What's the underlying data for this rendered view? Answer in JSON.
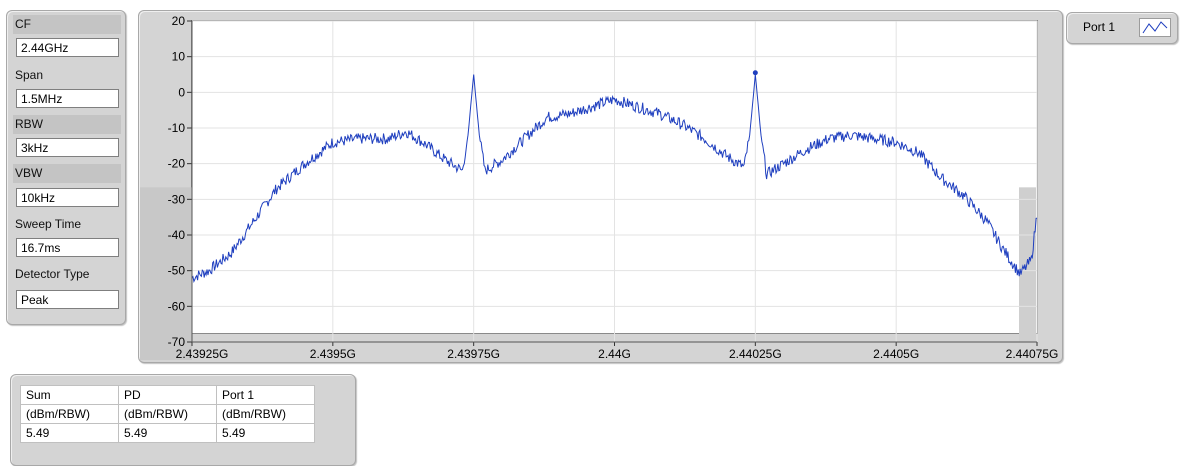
{
  "settings": [
    {
      "label": "CF",
      "value": "2.44GHz"
    },
    {
      "label": "Span",
      "value": "1.5MHz"
    },
    {
      "label": "RBW",
      "value": "3kHz"
    },
    {
      "label": "VBW",
      "value": "10kHz"
    },
    {
      "label": "Sweep Time",
      "value": "16.7ms"
    },
    {
      "label": "Detector Type",
      "value": "Peak"
    }
  ],
  "legend": {
    "name": "Port 1"
  },
  "table": {
    "headers": [
      "Sum",
      "PD",
      "Port 1"
    ],
    "units": [
      "(dBm/RBW)",
      "(dBm/RBW)",
      "(dBm/RBW)"
    ],
    "values": [
      "5.49",
      "5.49",
      "5.49"
    ]
  },
  "colors": {
    "trace": "#1f3fbf",
    "panel": "#d4d4d4"
  },
  "chart_data": {
    "type": "line",
    "x_tick_labels": [
      "2.43925G",
      "2.4395G",
      "2.43975G",
      "2.44G",
      "2.44025G",
      "2.4405G",
      "2.44075G"
    ],
    "y_tick_labels": [
      "20",
      "10",
      "0",
      "-10",
      "-20",
      "-30",
      "-40",
      "-50",
      "-60",
      "-70"
    ],
    "xlim": [
      2.43925,
      2.44075
    ],
    "ylim": [
      -70,
      20
    ],
    "grid": true,
    "series": [
      {
        "name": "Port 1",
        "x": [
          2.43925,
          2.43928,
          2.43932,
          2.43936,
          2.4394,
          2.43945,
          2.4395,
          2.43955,
          2.4396,
          2.43963,
          2.43966,
          2.4397,
          2.43973,
          2.43974,
          2.43975,
          2.43976,
          2.43977,
          2.4398,
          2.43984,
          2.43988,
          2.43992,
          2.43996,
          2.44,
          2.44004,
          2.44008,
          2.44012,
          2.44016,
          2.4402,
          2.44023,
          2.44024,
          2.44025,
          2.44026,
          2.44027,
          2.4403,
          2.44034,
          2.44038,
          2.44042,
          2.44046,
          2.4405,
          2.44054,
          2.44058,
          2.44062,
          2.44066,
          2.44069,
          2.44072,
          2.44074,
          2.44075
        ],
        "y": [
          -52,
          -50,
          -45,
          -36,
          -27,
          -20,
          -14,
          -13,
          -13,
          -11,
          -14,
          -19,
          -22,
          -12,
          5,
          -12,
          -22,
          -19,
          -13,
          -7,
          -6,
          -4,
          -2,
          -4,
          -6,
          -9,
          -13,
          -18,
          -21,
          -12,
          5,
          -12,
          -23,
          -20,
          -16,
          -13,
          -12,
          -13,
          -14,
          -17,
          -24,
          -29,
          -36,
          -44,
          -51,
          -47,
          -34
        ]
      }
    ],
    "marker": {
      "x": 2.44025,
      "y": 5.49
    }
  }
}
